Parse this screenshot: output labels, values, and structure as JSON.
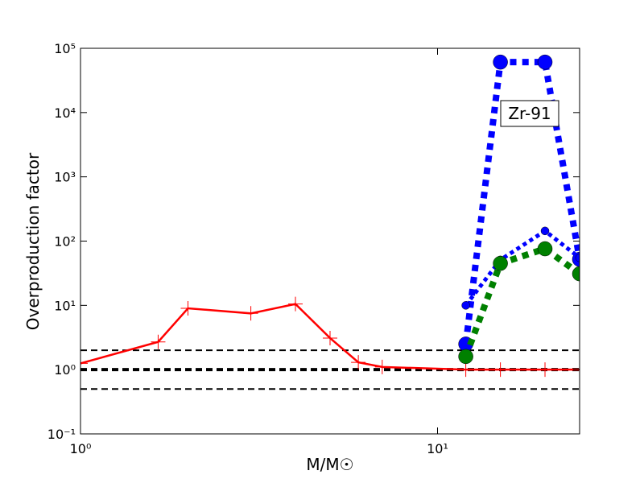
{
  "chart_data": {
    "type": "line",
    "xlabel": "M/M☉",
    "ylabel": "Overproduction factor",
    "annotation": "Zr-91",
    "xscale": "log",
    "yscale": "log",
    "xlim": [
      1,
      25
    ],
    "ylim": [
      0.1,
      100000
    ],
    "xticks": [
      {
        "value": 1,
        "label": "10⁰"
      },
      {
        "value": 10,
        "label": "10¹"
      }
    ],
    "yticks": [
      {
        "value": 0.1,
        "label": "10⁻¹"
      },
      {
        "value": 1,
        "label": "10⁰"
      },
      {
        "value": 10,
        "label": "10¹"
      },
      {
        "value": 100,
        "label": "10²"
      },
      {
        "value": 1000,
        "label": "10³"
      },
      {
        "value": 10000,
        "label": "10⁴"
      },
      {
        "value": 100000,
        "label": "10⁵"
      }
    ],
    "reference_lines": [
      {
        "y": 2,
        "color": "#000000",
        "linestyle": "dashed",
        "linewidth": 2
      },
      {
        "y": 1,
        "color": "#000000",
        "linestyle": "dashed",
        "linewidth": 4
      },
      {
        "y": 0.5,
        "color": "#000000",
        "linestyle": "dashed",
        "linewidth": 2
      }
    ],
    "series": [
      {
        "color": "#ff0000",
        "linestyle": "solid",
        "linewidth": 2.5,
        "marker": "+",
        "markersize": 9,
        "x": [
          1,
          1.65,
          2,
          3,
          4,
          5,
          6,
          7,
          12,
          15,
          20,
          25
        ],
        "values": [
          1.25,
          2.7,
          9,
          7.5,
          10.5,
          3.1,
          1.3,
          1.1,
          1.0,
          1.0,
          1.0,
          1.0
        ]
      },
      {
        "color": "#0000ff",
        "linestyle": "dotted",
        "linewidth": 8,
        "marker": "o",
        "markersize": 9,
        "x": [
          12,
          15,
          20,
          25
        ],
        "values": [
          2.5,
          61000,
          61000,
          52
        ]
      },
      {
        "color": "#0000ff",
        "linestyle": "dotted",
        "linewidth": 5,
        "marker": "o",
        "markersize": 5,
        "x": [
          12,
          15,
          20,
          25
        ],
        "values": [
          10,
          51,
          144,
          55
        ]
      },
      {
        "color": "#008000",
        "linestyle": "dotted",
        "linewidth": 8,
        "marker": "o",
        "markersize": 9,
        "x": [
          12,
          15,
          20,
          25
        ],
        "values": [
          1.6,
          45,
          76,
          31
        ]
      }
    ]
  }
}
